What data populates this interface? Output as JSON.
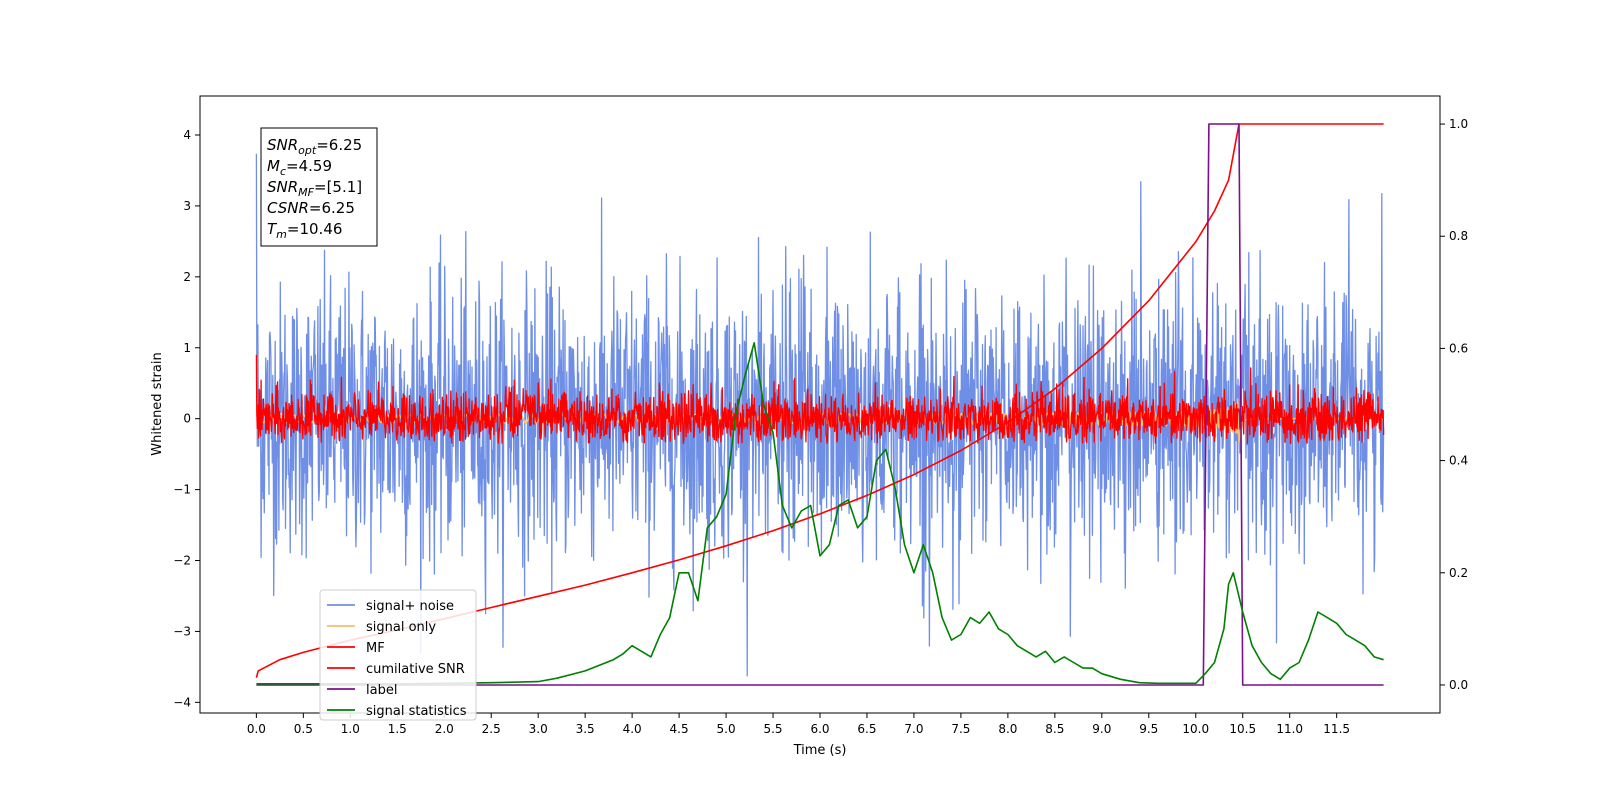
{
  "chart_data": {
    "type": "line",
    "xlabel": "Time (s)",
    "ylabel": "Whitened strain",
    "xlim": [
      -0.6,
      12.6
    ],
    "ylim": [
      -4.15,
      4.55
    ],
    "ylim_right": [
      -0.05,
      1.05
    ],
    "x_ticks": [
      0.0,
      0.5,
      1.0,
      1.5,
      2.0,
      2.5,
      3.0,
      3.5,
      4.0,
      4.5,
      5.0,
      5.5,
      6.0,
      6.5,
      7.0,
      7.5,
      8.0,
      8.5,
      9.0,
      9.5,
      10.0,
      10.5,
      11.0,
      11.5
    ],
    "x_tick_labels": [
      "0.0",
      "0.5",
      "1.0",
      "1.5",
      "2.0",
      "2.5",
      "3.0",
      "3.5",
      "4.0",
      "4.5",
      "5.0",
      "5.5",
      "6.0",
      "6.5",
      "7.0",
      "7.5",
      "8.0",
      "8.5",
      "9.0",
      "9.5",
      "10.0",
      "10.5",
      "11.0",
      "11.5"
    ],
    "y_ticks": [
      4,
      3,
      2,
      1,
      0,
      -1,
      -2,
      -3,
      -4
    ],
    "y_tick_labels": [
      "4",
      "3",
      "2",
      "1",
      "0",
      "−1",
      "−2",
      "−3",
      "−4"
    ],
    "y_right_ticks": [
      1.0,
      0.8,
      0.6,
      0.4,
      0.2,
      0.0
    ],
    "y_right_tick_labels": [
      "1.0",
      "0.8",
      "0.6",
      "0.4",
      "0.2",
      "0.0"
    ],
    "grid": false,
    "legend_position": "lower-left",
    "annotation": {
      "lines": [
        {
          "name": "SNR",
          "sub": "opt",
          "value": "=6.25"
        },
        {
          "name": "M",
          "sub": "c",
          "value": "=4.59"
        },
        {
          "name": "SNR",
          "sub": "MF",
          "value": "=[5.1]"
        },
        {
          "name": "CSNR",
          "sub": "",
          "value": "=6.25"
        },
        {
          "name": "T",
          "sub": "m",
          "value": "=10.46"
        }
      ]
    },
    "series": [
      {
        "name": "signal+ noise",
        "color": "#6f8fe6",
        "axis": "left",
        "style": "noise",
        "x_range": [
          0.0,
          12.0
        ],
        "amplitude_std": 0.95,
        "peak_range": [
          -3.75,
          4.15
        ]
      },
      {
        "name": "signal only",
        "color": "#f5c16c",
        "axis": "left",
        "style": "chirp",
        "x_range": [
          0.0,
          12.0
        ],
        "peak_time": 10.46,
        "max_amplitude": 0.45
      },
      {
        "name": "MF",
        "color": "#ff0000",
        "axis": "left",
        "style": "noise",
        "x_range": [
          0.0,
          12.0
        ],
        "amplitude_std": 0.2,
        "peak_range": [
          -0.35,
          1.0
        ]
      },
      {
        "name": "cumilative SNR",
        "color": "#ff0000",
        "axis": "right",
        "x": [
          0.0,
          0.02,
          0.25,
          0.5,
          1.0,
          1.5,
          2.0,
          2.5,
          3.0,
          3.5,
          4.0,
          4.5,
          5.0,
          5.5,
          6.0,
          6.5,
          7.0,
          7.5,
          8.0,
          8.5,
          9.0,
          9.5,
          10.0,
          10.2,
          10.35,
          10.46,
          11.0,
          11.5,
          12.0
        ],
        "y": [
          0.013,
          0.025,
          0.045,
          0.058,
          0.08,
          0.098,
          0.118,
          0.138,
          0.158,
          0.178,
          0.2,
          0.223,
          0.248,
          0.275,
          0.305,
          0.338,
          0.375,
          0.418,
          0.468,
          0.528,
          0.6,
          0.685,
          0.79,
          0.845,
          0.9,
          1.0,
          1.0,
          1.0,
          1.0
        ]
      },
      {
        "name": "label",
        "color": "#7b0f8c",
        "axis": "right",
        "x": [
          0.0,
          10.0,
          10.08,
          10.14,
          10.46,
          10.5,
          12.0
        ],
        "y": [
          0.0,
          0.0,
          0.0,
          1.0,
          1.0,
          0.0,
          0.0
        ]
      },
      {
        "name": "signal statistics",
        "color": "#008000",
        "axis": "right",
        "x": [
          0.0,
          0.5,
          1.0,
          1.5,
          2.0,
          2.5,
          3.0,
          3.2,
          3.5,
          3.8,
          3.9,
          4.0,
          4.1,
          4.2,
          4.3,
          4.4,
          4.5,
          4.6,
          4.7,
          4.8,
          4.9,
          5.0,
          5.1,
          5.2,
          5.3,
          5.4,
          5.5,
          5.6,
          5.7,
          5.8,
          5.9,
          6.0,
          6.1,
          6.2,
          6.3,
          6.4,
          6.5,
          6.6,
          6.7,
          6.8,
          6.9,
          7.0,
          7.1,
          7.2,
          7.3,
          7.4,
          7.5,
          7.6,
          7.7,
          7.8,
          7.9,
          8.0,
          8.1,
          8.2,
          8.3,
          8.4,
          8.5,
          8.6,
          8.7,
          8.8,
          8.9,
          9.0,
          9.2,
          9.4,
          9.6,
          9.8,
          10.0,
          10.1,
          10.2,
          10.3,
          10.35,
          10.4,
          10.5,
          10.6,
          10.7,
          10.8,
          10.9,
          11.0,
          11.1,
          11.2,
          11.3,
          11.4,
          11.5,
          11.6,
          11.7,
          11.8,
          11.9,
          12.0
        ],
        "y": [
          0.002,
          0.002,
          0.002,
          0.002,
          0.003,
          0.004,
          0.006,
          0.012,
          0.025,
          0.045,
          0.055,
          0.07,
          0.06,
          0.05,
          0.09,
          0.12,
          0.2,
          0.2,
          0.15,
          0.28,
          0.3,
          0.34,
          0.48,
          0.55,
          0.61,
          0.5,
          0.45,
          0.32,
          0.28,
          0.31,
          0.32,
          0.23,
          0.25,
          0.32,
          0.33,
          0.28,
          0.3,
          0.4,
          0.42,
          0.35,
          0.25,
          0.2,
          0.25,
          0.2,
          0.12,
          0.08,
          0.09,
          0.12,
          0.11,
          0.13,
          0.1,
          0.09,
          0.07,
          0.06,
          0.05,
          0.06,
          0.04,
          0.05,
          0.04,
          0.03,
          0.03,
          0.02,
          0.01,
          0.004,
          0.003,
          0.003,
          0.003,
          0.02,
          0.04,
          0.1,
          0.18,
          0.2,
          0.13,
          0.07,
          0.04,
          0.02,
          0.01,
          0.03,
          0.04,
          0.08,
          0.13,
          0.12,
          0.11,
          0.09,
          0.08,
          0.07,
          0.05,
          0.045
        ]
      }
    ]
  }
}
